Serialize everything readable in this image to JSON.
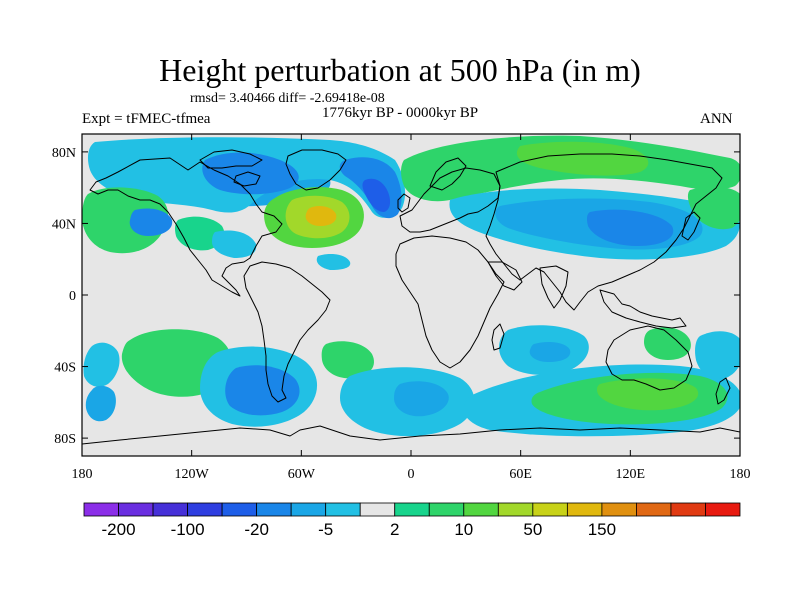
{
  "title": "Height perturbation at 500 hPa (in m)",
  "stats": "rmsd= 3.40466 diff= -2.69418e-08",
  "experiment": "Expt = tFMEC-tfmea",
  "period": "1776kyr BP - 0000kyr BP",
  "season": "ANN",
  "map": {
    "lon_range": [
      -180,
      180
    ],
    "lat_range": [
      -90,
      90
    ],
    "y_ticks": [
      {
        "lat": 80,
        "label": "80N"
      },
      {
        "lat": 40,
        "label": "40N"
      },
      {
        "lat": 0,
        "label": "0"
      },
      {
        "lat": -40,
        "label": "40S"
      },
      {
        "lat": -80,
        "label": "80S"
      }
    ],
    "x_ticks": [
      {
        "lon": -180,
        "label": "180"
      },
      {
        "lon": -120,
        "label": "120W"
      },
      {
        "lon": -60,
        "label": "60W"
      },
      {
        "lon": 0,
        "label": "0"
      },
      {
        "lon": 60,
        "label": "60E"
      },
      {
        "lon": 120,
        "label": "120E"
      },
      {
        "lon": 180,
        "label": "180"
      }
    ]
  },
  "colorbar": {
    "colors": [
      "#8b2ee8",
      "#6a2ee0",
      "#4630d8",
      "#2e3ee0",
      "#1e5ee8",
      "#1a86e8",
      "#1aa6e6",
      "#22c0e4",
      "#e6e6e6",
      "#18d48c",
      "#2ed46a",
      "#52d640",
      "#a2d82a",
      "#c8d218",
      "#e0b80e",
      "#e09010",
      "#e06814",
      "#e03a12",
      "#e81a10"
    ],
    "labels": [
      "-200",
      "-100",
      "-20",
      "-5",
      "2",
      "10",
      "50",
      "150"
    ]
  }
}
